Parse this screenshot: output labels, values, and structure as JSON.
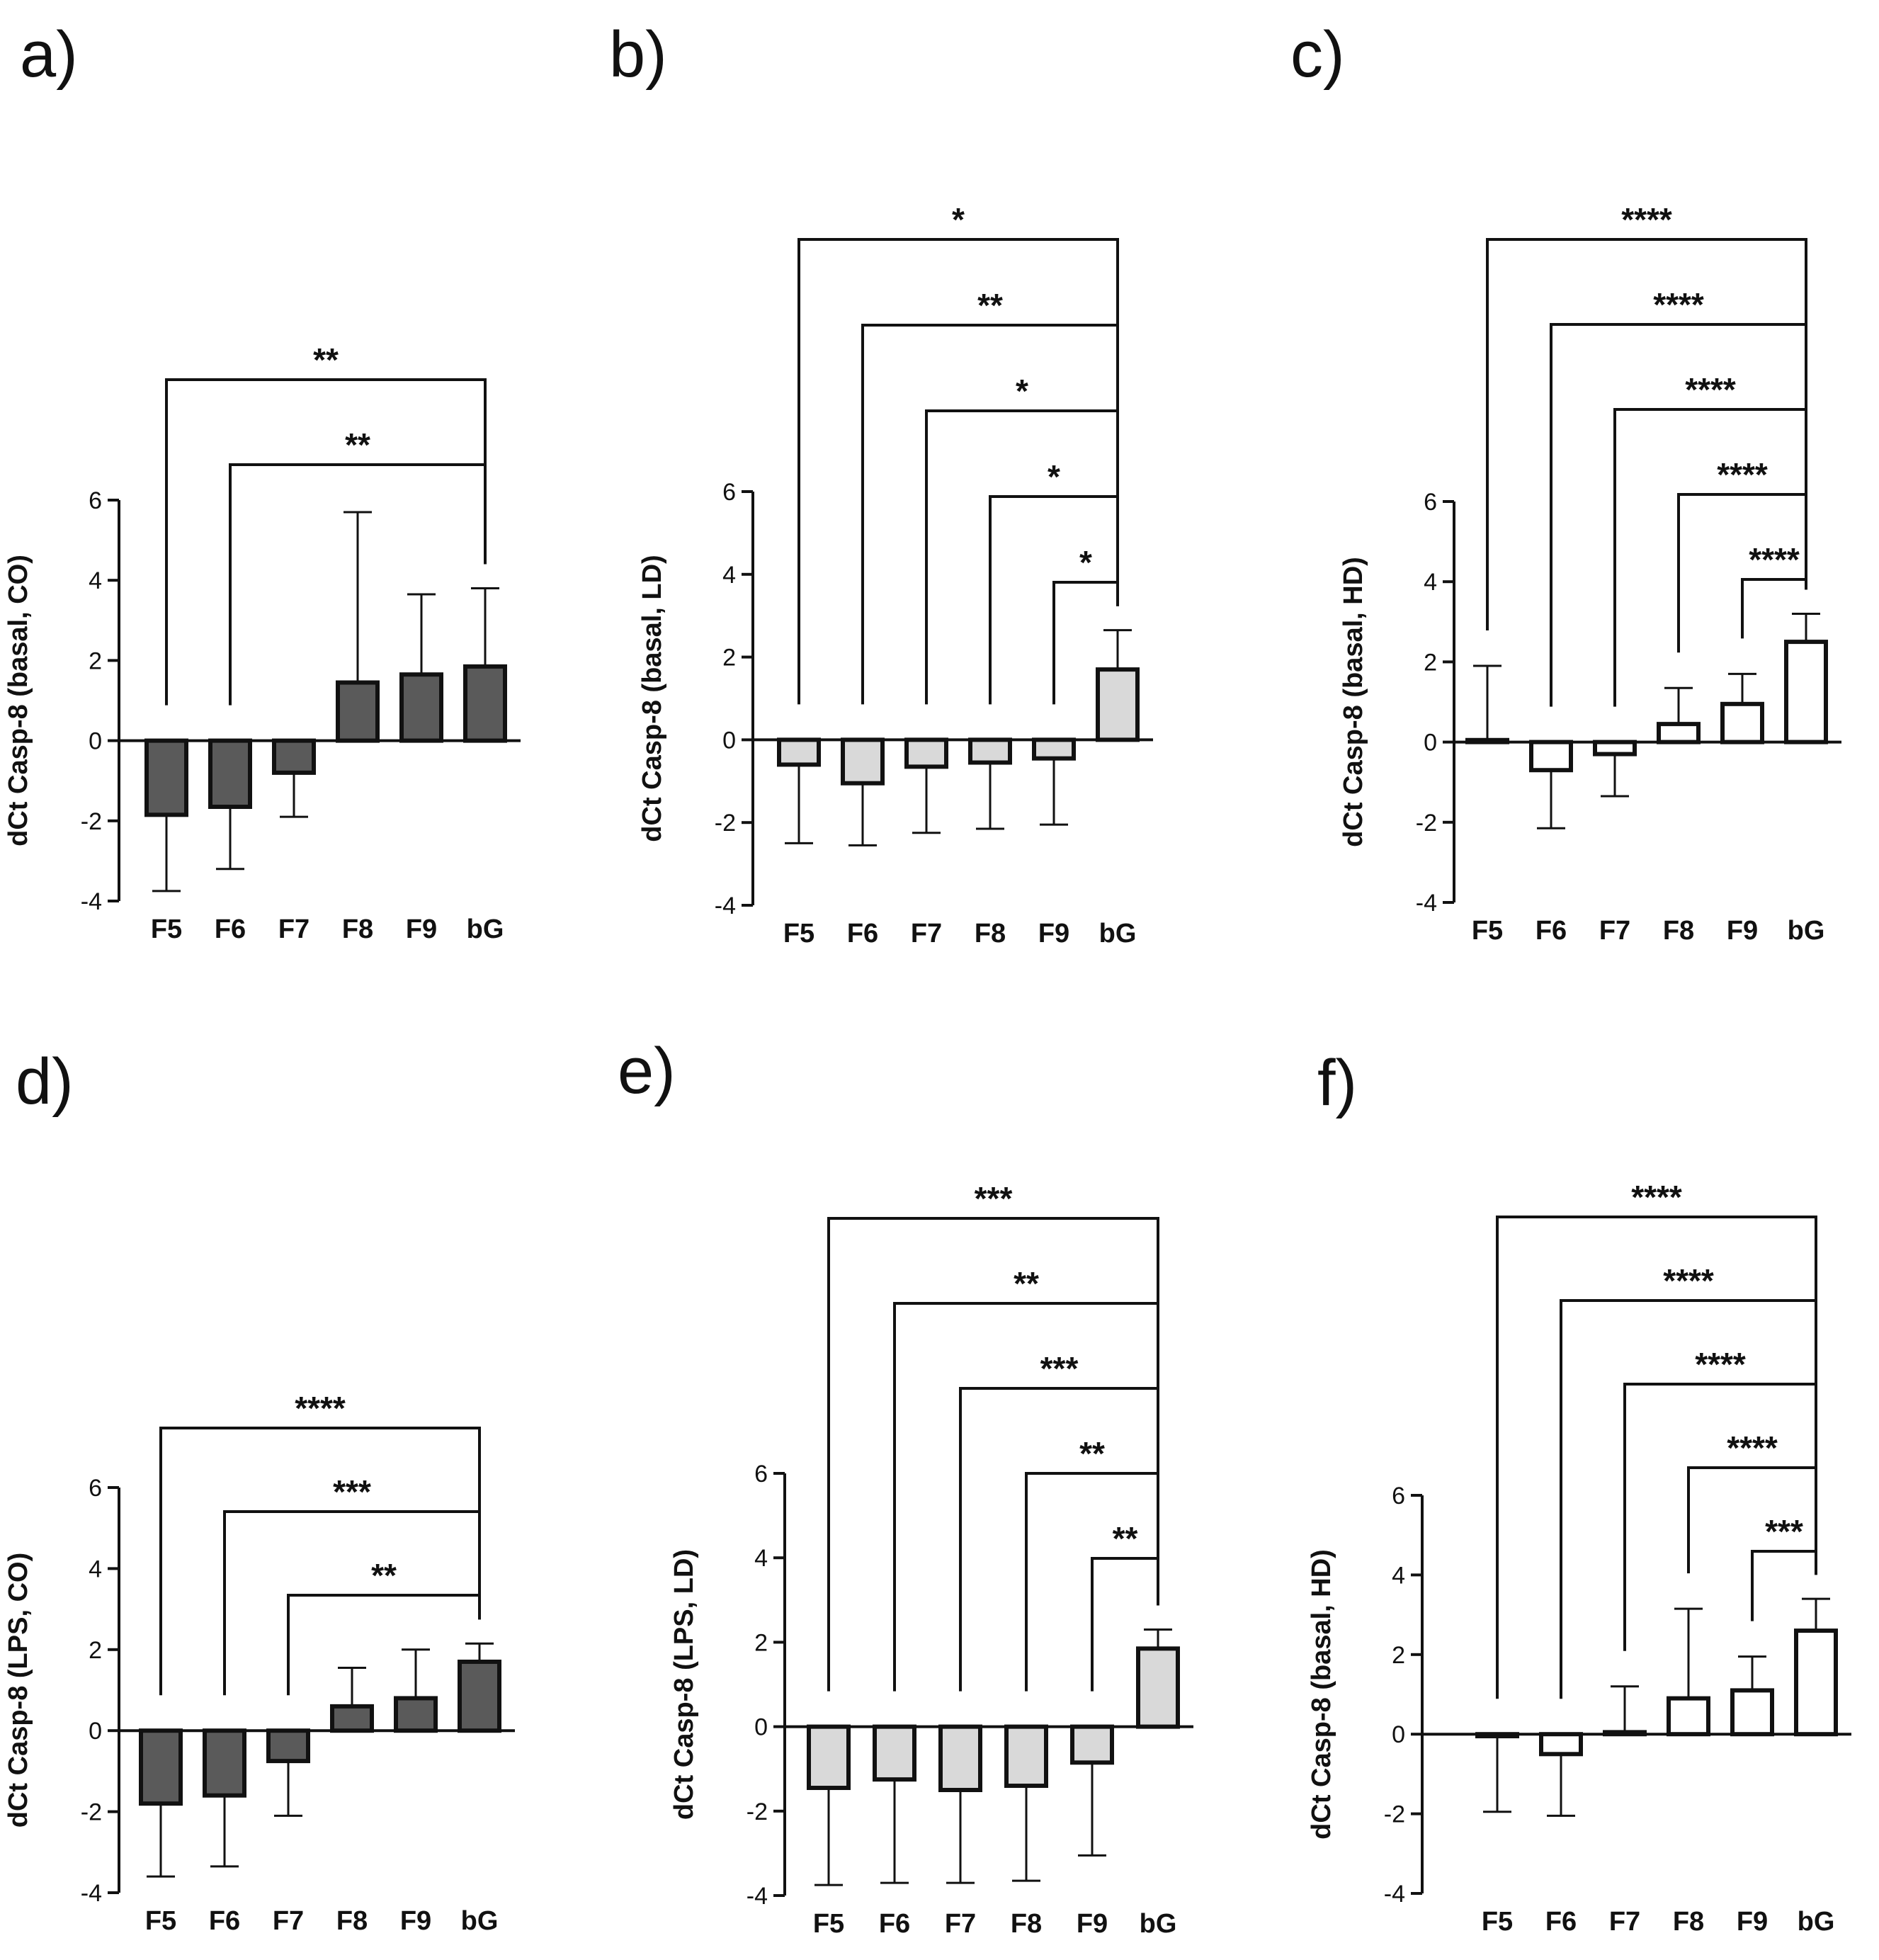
{
  "figure": {
    "panels": [
      "a)",
      "b)",
      "c)",
      "d)",
      "e)",
      "f)"
    ]
  },
  "colors": {
    "dark": "#5a5a5a",
    "light": "#d9d9d9",
    "white": "#ffffff",
    "ink": "#111111"
  },
  "chart_data": [
    {
      "panel": "a)",
      "type": "bar",
      "style": "dark",
      "ylabel": "dCt Casp-8 (basal, CO)",
      "ylim": [
        -4,
        6
      ],
      "yticks": [
        -4,
        -2,
        0,
        2,
        4,
        6
      ],
      "categories": [
        "F5",
        "F6",
        "F7",
        "F8",
        "F9",
        "bG"
      ],
      "values": [
        -1.85,
        -1.65,
        -0.8,
        1.45,
        1.65,
        1.85
      ],
      "errors": [
        1.9,
        1.55,
        1.1,
        4.25,
        2.0,
        1.95
      ],
      "brackets": [
        {
          "from": "F5",
          "to": "bG",
          "label": "**"
        },
        {
          "from": "F6",
          "to": "bG",
          "label": "**"
        }
      ]
    },
    {
      "panel": "b)",
      "type": "bar",
      "style": "light",
      "ylabel": "dCt Casp-8 (basal, LD)",
      "ylim": [
        -4,
        6
      ],
      "yticks": [
        -4,
        -2,
        0,
        2,
        4,
        6
      ],
      "categories": [
        "F5",
        "F6",
        "F7",
        "F8",
        "F9",
        "bG"
      ],
      "values": [
        -0.6,
        -1.05,
        -0.65,
        -0.55,
        -0.45,
        1.7
      ],
      "errors": [
        1.9,
        1.5,
        1.6,
        1.6,
        1.6,
        0.95
      ],
      "brackets": [
        {
          "from": "F5",
          "to": "bG",
          "label": "*"
        },
        {
          "from": "F6",
          "to": "bG",
          "label": "**"
        },
        {
          "from": "F7",
          "to": "bG",
          "label": "*"
        },
        {
          "from": "F8",
          "to": "bG",
          "label": "*"
        },
        {
          "from": "F9",
          "to": "bG",
          "label": "*"
        }
      ]
    },
    {
      "panel": "c)",
      "type": "bar",
      "style": "white",
      "ylabel": "dCt Casp-8 (basal, HD)",
      "ylim": [
        -4,
        6
      ],
      "yticks": [
        -4,
        -2,
        0,
        2,
        4,
        6
      ],
      "categories": [
        "F5",
        "F6",
        "F7",
        "F8",
        "F9",
        "bG"
      ],
      "values": [
        0.05,
        -0.7,
        -0.3,
        0.45,
        0.95,
        2.5
      ],
      "errors": [
        1.85,
        1.45,
        1.05,
        0.9,
        0.75,
        0.7
      ],
      "brackets": [
        {
          "from": "F5",
          "to": "bG",
          "label": "****"
        },
        {
          "from": "F6",
          "to": "bG",
          "label": "****"
        },
        {
          "from": "F7",
          "to": "bG",
          "label": "****"
        },
        {
          "from": "F8",
          "to": "bG",
          "label": "****"
        },
        {
          "from": "F9",
          "to": "bG",
          "label": "****"
        }
      ]
    },
    {
      "panel": "d)",
      "type": "bar",
      "style": "dark",
      "ylabel": "dCt Casp-8 (LPS, CO)",
      "ylim": [
        -4,
        6
      ],
      "yticks": [
        -4,
        -2,
        0,
        2,
        4,
        6
      ],
      "categories": [
        "F5",
        "F6",
        "F7",
        "F8",
        "F9",
        "bG"
      ],
      "values": [
        -1.8,
        -1.6,
        -0.75,
        0.6,
        0.8,
        1.7
      ],
      "errors": [
        1.8,
        1.75,
        1.35,
        0.95,
        1.2,
        0.45
      ],
      "brackets": [
        {
          "from": "F5",
          "to": "bG",
          "label": "****"
        },
        {
          "from": "F6",
          "to": "bG",
          "label": "***"
        },
        {
          "from": "F7",
          "to": "bG",
          "label": "**"
        }
      ]
    },
    {
      "panel": "e)",
      "type": "bar",
      "style": "light",
      "ylabel": "dCt Casp-8 (LPS, LD)",
      "ylim": [
        -4,
        6
      ],
      "yticks": [
        -4,
        -2,
        0,
        2,
        4,
        6
      ],
      "categories": [
        "F5",
        "F6",
        "F7",
        "F8",
        "F9",
        "bG"
      ],
      "values": [
        -1.45,
        -1.25,
        -1.5,
        -1.4,
        -0.85,
        1.85
      ],
      "errors": [
        2.3,
        2.45,
        2.2,
        2.25,
        2.2,
        0.45
      ],
      "brackets": [
        {
          "from": "F5",
          "to": "bG",
          "label": "***"
        },
        {
          "from": "F6",
          "to": "bG",
          "label": "**"
        },
        {
          "from": "F7",
          "to": "bG",
          "label": "***"
        },
        {
          "from": "F8",
          "to": "bG",
          "label": "**"
        },
        {
          "from": "F9",
          "to": "bG",
          "label": "**"
        }
      ]
    },
    {
      "panel": "f)",
      "type": "bar",
      "style": "white",
      "ylabel": "dCt Casp-8 (basal, HD)",
      "ylim": [
        -4,
        6
      ],
      "yticks": [
        -4,
        -2,
        0,
        2,
        4,
        6
      ],
      "categories": [
        "F5",
        "F6",
        "F7",
        "F8",
        "F9",
        "bG"
      ],
      "values": [
        -0.05,
        -0.5,
        0.05,
        0.9,
        1.1,
        2.6
      ],
      "errors": [
        1.9,
        1.55,
        1.15,
        2.25,
        0.85,
        0.8
      ],
      "brackets": [
        {
          "from": "F5",
          "to": "bG",
          "label": "****"
        },
        {
          "from": "F6",
          "to": "bG",
          "label": "****"
        },
        {
          "from": "F7",
          "to": "bG",
          "label": "****"
        },
        {
          "from": "F8",
          "to": "bG",
          "label": "****"
        },
        {
          "from": "F9",
          "to": "bG",
          "label": "***"
        }
      ]
    }
  ]
}
